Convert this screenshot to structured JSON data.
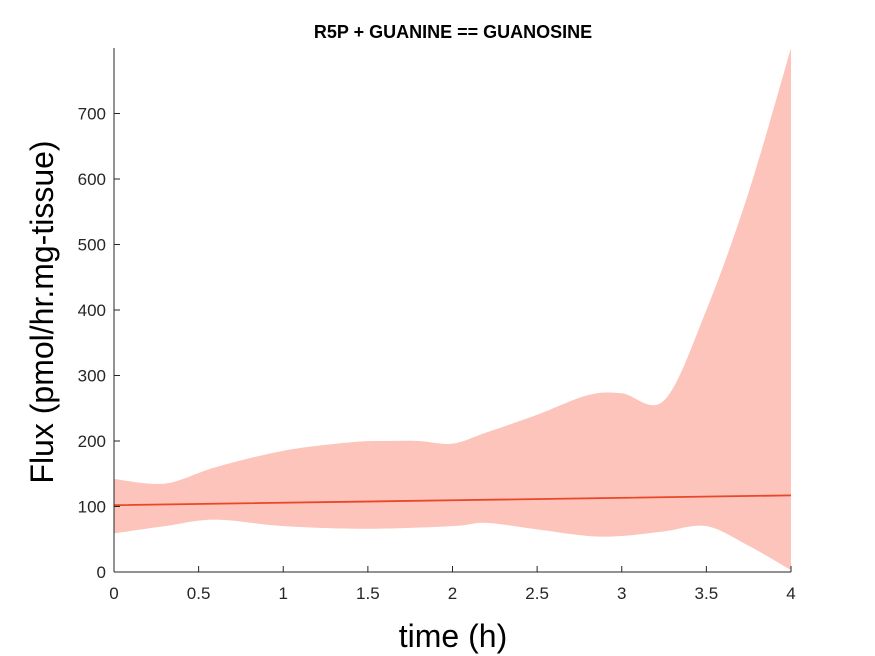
{
  "chart_data": {
    "type": "area",
    "title": "R5P + GUANINE == GUANOSINE",
    "xlabel": "time (h)",
    "ylabel": "Flux (pmol/hr.mg-tissue)",
    "xlim": [
      0,
      4
    ],
    "ylim": [
      0,
      800
    ],
    "xticks": [
      0,
      0.5,
      1,
      1.5,
      2,
      2.5,
      3,
      3.5,
      4
    ],
    "xtick_labels": [
      "0",
      "0.5",
      "1",
      "1.5",
      "2",
      "2.5",
      "3",
      "3.5",
      "4"
    ],
    "yticks": [
      0,
      100,
      200,
      300,
      400,
      500,
      600,
      700
    ],
    "ytick_labels": [
      "0",
      "100",
      "200",
      "300",
      "400",
      "500",
      "600",
      "700"
    ],
    "grid": false,
    "series": [
      {
        "kind": "line",
        "color": "#e8472a",
        "x": [
          0,
          4
        ],
        "y": [
          102,
          117
        ]
      },
      {
        "kind": "band",
        "color": "#fcc4ba",
        "upper": {
          "x": [
            0,
            0.3,
            0.6,
            1.0,
            1.4,
            1.6,
            1.8,
            2.0,
            2.2,
            2.5,
            2.8,
            3.0,
            3.25,
            3.5,
            3.75,
            4.0
          ],
          "y": [
            142,
            135,
            160,
            185,
            198,
            200,
            200,
            196,
            213,
            240,
            270,
            273,
            262,
            400,
            580,
            800
          ]
        },
        "lower": {
          "x": [
            0,
            0.3,
            0.6,
            1.0,
            1.5,
            2.0,
            2.2,
            2.5,
            2.8,
            3.0,
            3.25,
            3.5,
            3.75,
            4.0
          ],
          "y": [
            59,
            70,
            80,
            70,
            66,
            70,
            75,
            65,
            55,
            55,
            62,
            70,
            40,
            3
          ]
        }
      }
    ]
  }
}
